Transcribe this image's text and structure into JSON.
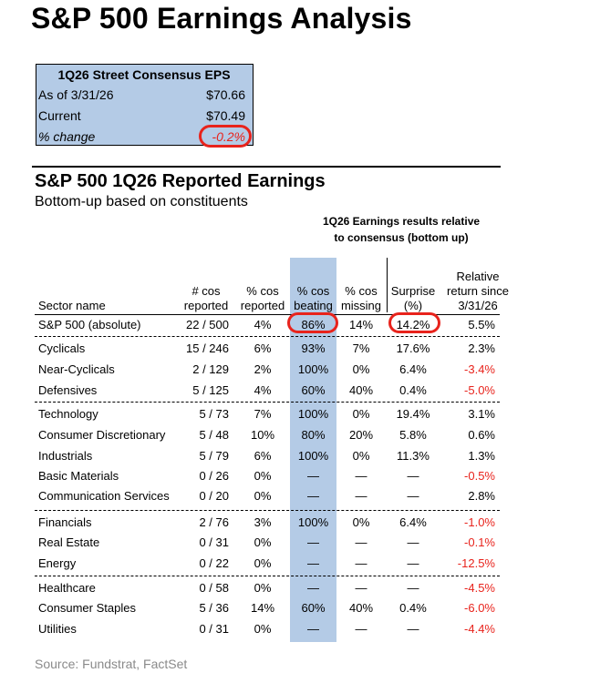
{
  "title": "S&P 500 Earnings Analysis",
  "consensus": {
    "title": "1Q26 Street Consensus EPS",
    "rows": [
      {
        "label": "As of 3/31/26",
        "value": "$70.66"
      },
      {
        "label": "Current",
        "value": "$70.49"
      },
      {
        "label": "% change",
        "value": "-0.2%"
      }
    ]
  },
  "section": {
    "title": "S&P 500 1Q26 Reported Earnings",
    "subtitle": "Bottom-up based on constituents",
    "group_header_1": "1Q26 Earnings results relative",
    "group_header_2": "to consensus (bottom up)"
  },
  "headers": {
    "sector": "Sector name",
    "reported_1": "# cos",
    "reported_2": "reported",
    "pct_reported_1": "% cos",
    "pct_reported_2": "reported",
    "beating_1": "% cos",
    "beating_2": "beating",
    "missing_1": "% cos",
    "missing_2": "missing",
    "surprise_1": "Surprise",
    "surprise_2": "(%)",
    "return_1": "Relative",
    "return_2": "return since",
    "return_3": "3/31/26"
  },
  "rows": [
    {
      "name": "S&P 500 (absolute)",
      "reported": "22 / 500",
      "pct": "4%",
      "beat": "86%",
      "miss": "14%",
      "surp": "14.2%",
      "ret": "5.5%"
    },
    {
      "name": "Cyclicals",
      "reported": "15 / 246",
      "pct": "6%",
      "beat": "93%",
      "miss": "7%",
      "surp": "17.6%",
      "ret": "2.3%"
    },
    {
      "name": "Near-Cyclicals",
      "reported": "2 / 129",
      "pct": "2%",
      "beat": "100%",
      "miss": "0%",
      "surp": "6.4%",
      "ret": "-3.4%"
    },
    {
      "name": "Defensives",
      "reported": "5 / 125",
      "pct": "4%",
      "beat": "60%",
      "miss": "40%",
      "surp": "0.4%",
      "ret": "-5.0%"
    },
    {
      "name": "Technology",
      "reported": "5 / 73",
      "pct": "7%",
      "beat": "100%",
      "miss": "0%",
      "surp": "19.4%",
      "ret": "3.1%"
    },
    {
      "name": "Consumer Discretionary",
      "reported": "5 / 48",
      "pct": "10%",
      "beat": "80%",
      "miss": "20%",
      "surp": "5.8%",
      "ret": "0.6%"
    },
    {
      "name": "Industrials",
      "reported": "5 / 79",
      "pct": "6%",
      "beat": "100%",
      "miss": "0%",
      "surp": "11.3%",
      "ret": "1.3%"
    },
    {
      "name": "Basic Materials",
      "reported": "0 / 26",
      "pct": "0%",
      "beat": "—",
      "miss": "—",
      "surp": "—",
      "ret": "-0.5%"
    },
    {
      "name": "Communication Services",
      "reported": "0 / 20",
      "pct": "0%",
      "beat": "—",
      "miss": "—",
      "surp": "—",
      "ret": "2.8%"
    },
    {
      "name": "Financials",
      "reported": "2 / 76",
      "pct": "3%",
      "beat": "100%",
      "miss": "0%",
      "surp": "6.4%",
      "ret": "-1.0%"
    },
    {
      "name": "Real Estate",
      "reported": "0 / 31",
      "pct": "0%",
      "beat": "—",
      "miss": "—",
      "surp": "—",
      "ret": "-0.1%"
    },
    {
      "name": "Energy",
      "reported": "0 / 22",
      "pct": "0%",
      "beat": "—",
      "miss": "—",
      "surp": "—",
      "ret": "-12.5%"
    },
    {
      "name": "Healthcare",
      "reported": "0 / 58",
      "pct": "0%",
      "beat": "—",
      "miss": "—",
      "surp": "—",
      "ret": "-4.5%"
    },
    {
      "name": "Consumer Staples",
      "reported": "5 / 36",
      "pct": "14%",
      "beat": "60%",
      "miss": "40%",
      "surp": "0.4%",
      "ret": "-6.0%"
    },
    {
      "name": "Utilities",
      "reported": "0 / 31",
      "pct": "0%",
      "beat": "—",
      "miss": "—",
      "surp": "—",
      "ret": "-4.4%"
    }
  ],
  "source": "Source: Fundstrat, FactSet",
  "colors": {
    "highlight": "#b4cbe6",
    "negative": "#e8231c",
    "annotation": "#e8231c"
  }
}
